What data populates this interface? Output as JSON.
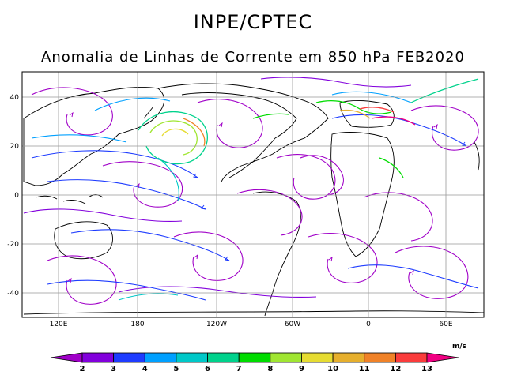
{
  "header": {
    "institution": "INPE/CPTEC"
  },
  "map": {
    "title": "Anomalia de Linhas de Corrente em 850 hPa FEB2020",
    "lat_ticks": [
      "40",
      "20",
      "0",
      "-20",
      "-40"
    ],
    "lon_ticks": [
      "120E",
      "180",
      "120W",
      "60W",
      "0",
      "60E"
    ],
    "extent": {
      "lon_min": 90,
      "lon_max": 440,
      "lat_min": -50,
      "lat_max": 50
    }
  },
  "colorbar": {
    "units": "m/s",
    "labels": [
      "2",
      "3",
      "4",
      "5",
      "6",
      "7",
      "8",
      "9",
      "10",
      "11",
      "12",
      "13"
    ],
    "colors": [
      "#a000c8",
      "#8200dc",
      "#1e3cff",
      "#00a0ff",
      "#00c8c8",
      "#00d28c",
      "#00dc00",
      "#a0e632",
      "#e6dc32",
      "#e6af2d",
      "#f08228",
      "#fa3c3c",
      "#f00082"
    ]
  }
}
